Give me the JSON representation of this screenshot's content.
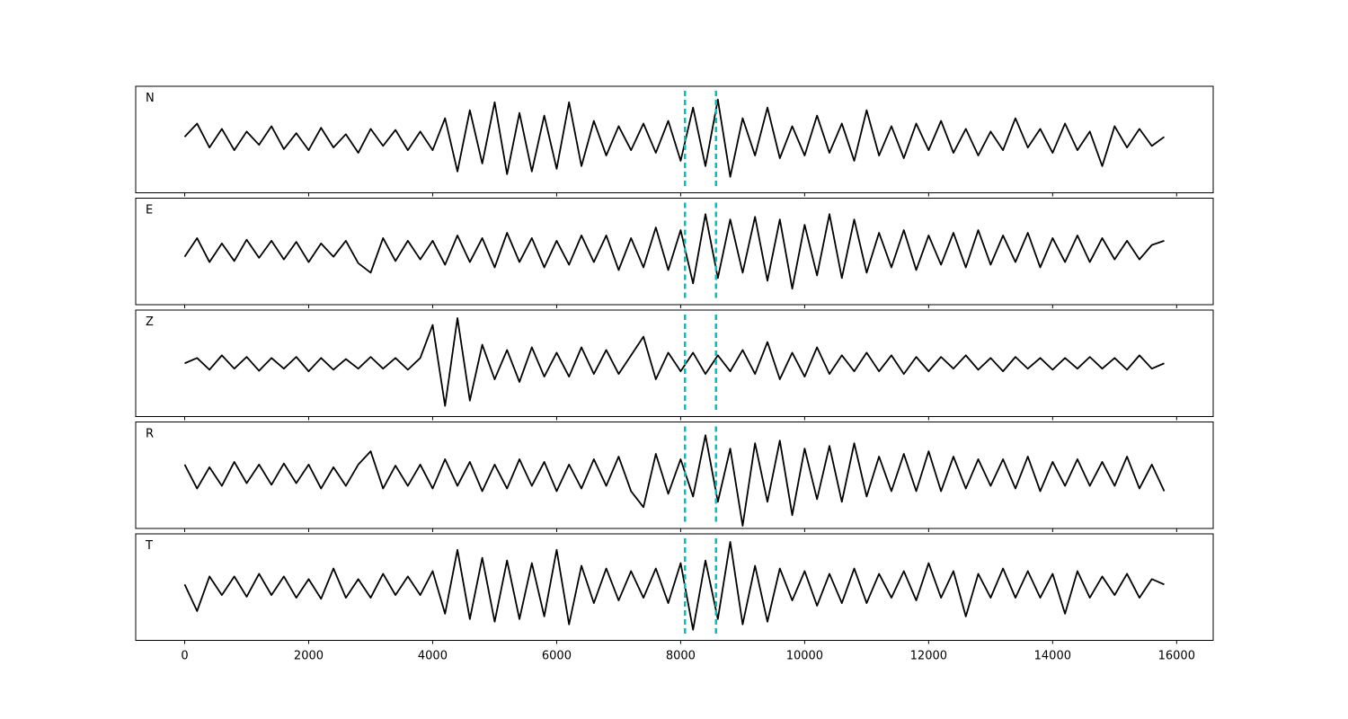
{
  "chart_data": {
    "type": "line",
    "x": [
      0,
      200,
      400,
      600,
      800,
      1000,
      1200,
      1400,
      1600,
      1800,
      2000,
      2200,
      2400,
      2600,
      2800,
      3000,
      3200,
      3400,
      3600,
      3800,
      4000,
      4200,
      4400,
      4600,
      4800,
      5000,
      5200,
      5400,
      5600,
      5800,
      6000,
      6200,
      6400,
      6600,
      6800,
      7000,
      7200,
      7400,
      7600,
      7800,
      8000,
      8200,
      8400,
      8600,
      8800,
      9000,
      9200,
      9400,
      9600,
      9800,
      10000,
      10200,
      10400,
      10600,
      10800,
      11000,
      11200,
      11400,
      11600,
      11800,
      12000,
      12200,
      12400,
      12600,
      12800,
      13000,
      13200,
      13400,
      13600,
      13800,
      14000,
      14200,
      14400,
      14600,
      14800,
      15000,
      15200,
      15400,
      15600,
      15800
    ],
    "xlim": [
      -790,
      16590
    ],
    "xticks": [
      0,
      2000,
      4000,
      6000,
      8000,
      10000,
      12000,
      14000,
      16000
    ],
    "ylim": [
      -1,
      1
    ],
    "series": [
      {
        "name": "N",
        "color": "#000000",
        "values": [
          0.05,
          0.3,
          -0.15,
          0.2,
          -0.2,
          0.15,
          -0.1,
          0.25,
          -0.18,
          0.12,
          -0.2,
          0.22,
          -0.15,
          0.1,
          -0.25,
          0.2,
          -0.12,
          0.18,
          -0.2,
          0.15,
          -0.2,
          0.4,
          -0.6,
          0.55,
          -0.45,
          0.7,
          -0.65,
          0.5,
          -0.6,
          0.45,
          -0.55,
          0.7,
          -0.5,
          0.35,
          -0.3,
          0.25,
          -0.2,
          0.3,
          -0.25,
          0.35,
          -0.4,
          0.6,
          -0.5,
          0.75,
          -0.7,
          0.4,
          -0.3,
          0.6,
          -0.35,
          0.25,
          -0.3,
          0.45,
          -0.25,
          0.3,
          -0.4,
          0.55,
          -0.3,
          0.25,
          -0.35,
          0.3,
          -0.2,
          0.35,
          -0.25,
          0.2,
          -0.3,
          0.15,
          -0.2,
          0.4,
          -0.15,
          0.2,
          -0.25,
          0.3,
          -0.2,
          0.15,
          -0.5,
          0.25,
          -0.15,
          0.2,
          -0.12,
          0.05
        ]
      },
      {
        "name": "E",
        "color": "#000000",
        "values": [
          -0.1,
          0.25,
          -0.2,
          0.15,
          -0.18,
          0.22,
          -0.12,
          0.2,
          -0.15,
          0.18,
          -0.2,
          0.15,
          -0.1,
          0.2,
          -0.22,
          -0.4,
          0.25,
          -0.18,
          0.2,
          -0.15,
          0.2,
          -0.25,
          0.3,
          -0.2,
          0.25,
          -0.3,
          0.35,
          -0.2,
          0.25,
          -0.3,
          0.2,
          -0.25,
          0.3,
          -0.2,
          0.3,
          -0.35,
          0.25,
          -0.3,
          0.45,
          -0.35,
          0.4,
          -0.6,
          0.7,
          -0.5,
          0.6,
          -0.4,
          0.65,
          -0.55,
          0.6,
          -0.7,
          0.5,
          -0.45,
          0.7,
          -0.5,
          0.6,
          -0.4,
          0.35,
          -0.3,
          0.4,
          -0.35,
          0.3,
          -0.25,
          0.35,
          -0.3,
          0.4,
          -0.25,
          0.3,
          -0.2,
          0.35,
          -0.3,
          0.25,
          -0.2,
          0.3,
          -0.2,
          0.25,
          -0.15,
          0.2,
          -0.15,
          0.12,
          0.2
        ]
      },
      {
        "name": "Z",
        "color": "#000000",
        "values": [
          0.0,
          0.1,
          -0.12,
          0.15,
          -0.1,
          0.12,
          -0.14,
          0.1,
          -0.1,
          0.12,
          -0.15,
          0.1,
          -0.12,
          0.08,
          -0.1,
          0.12,
          -0.1,
          0.1,
          -0.12,
          0.1,
          0.72,
          -0.8,
          0.85,
          -0.7,
          0.35,
          -0.3,
          0.25,
          -0.35,
          0.3,
          -0.25,
          0.2,
          -0.25,
          0.3,
          -0.2,
          0.25,
          -0.2,
          0.15,
          0.5,
          -0.3,
          0.2,
          -0.15,
          0.2,
          -0.2,
          0.15,
          -0.15,
          0.25,
          -0.2,
          0.4,
          -0.3,
          0.2,
          -0.25,
          0.3,
          -0.2,
          0.15,
          -0.15,
          0.2,
          -0.15,
          0.15,
          -0.2,
          0.12,
          -0.15,
          0.12,
          -0.1,
          0.15,
          -0.12,
          0.1,
          -0.15,
          0.12,
          -0.1,
          0.1,
          -0.12,
          0.1,
          -0.1,
          0.12,
          -0.1,
          0.1,
          -0.12,
          0.15,
          -0.1,
          0.0
        ]
      },
      {
        "name": "R",
        "color": "#000000",
        "values": [
          0.2,
          -0.25,
          0.15,
          -0.2,
          0.25,
          -0.15,
          0.2,
          -0.18,
          0.22,
          -0.15,
          0.2,
          -0.25,
          0.15,
          -0.2,
          0.2,
          0.45,
          -0.25,
          0.18,
          -0.2,
          0.2,
          -0.25,
          0.3,
          -0.2,
          0.25,
          -0.3,
          0.2,
          -0.25,
          0.3,
          -0.2,
          0.25,
          -0.3,
          0.2,
          -0.25,
          0.3,
          -0.2,
          0.35,
          -0.3,
          -0.6,
          0.4,
          -0.35,
          0.3,
          -0.4,
          0.75,
          -0.5,
          0.5,
          -0.95,
          0.6,
          -0.5,
          0.65,
          -0.75,
          0.5,
          -0.45,
          0.55,
          -0.5,
          0.6,
          -0.4,
          0.35,
          -0.3,
          0.4,
          -0.3,
          0.45,
          -0.3,
          0.35,
          -0.25,
          0.3,
          -0.2,
          0.3,
          -0.25,
          0.35,
          -0.3,
          0.25,
          -0.2,
          0.3,
          -0.2,
          0.25,
          -0.2,
          0.35,
          -0.25,
          0.2,
          -0.3
        ]
      },
      {
        "name": "T",
        "color": "#000000",
        "values": [
          0.05,
          -0.45,
          0.2,
          -0.15,
          0.2,
          -0.18,
          0.25,
          -0.15,
          0.2,
          -0.2,
          0.15,
          -0.22,
          0.35,
          -0.2,
          0.15,
          -0.2,
          0.25,
          -0.15,
          0.2,
          -0.15,
          0.3,
          -0.5,
          0.7,
          -0.6,
          0.55,
          -0.65,
          0.5,
          -0.6,
          0.45,
          -0.55,
          0.7,
          -0.7,
          0.4,
          -0.3,
          0.35,
          -0.25,
          0.3,
          -0.2,
          0.35,
          -0.3,
          0.45,
          -0.8,
          0.5,
          -0.6,
          0.85,
          -0.7,
          0.4,
          -0.65,
          0.35,
          -0.25,
          0.3,
          -0.35,
          0.25,
          -0.3,
          0.35,
          -0.3,
          0.25,
          -0.2,
          0.3,
          -0.25,
          0.45,
          -0.2,
          0.3,
          -0.55,
          0.25,
          -0.2,
          0.35,
          -0.2,
          0.3,
          -0.2,
          0.25,
          -0.5,
          0.3,
          -0.2,
          0.2,
          -0.15,
          0.25,
          -0.2,
          0.15,
          0.05
        ]
      }
    ],
    "vlines": {
      "values": [
        8070,
        8570
      ],
      "color": "#00bfbf",
      "dashed": true
    }
  }
}
